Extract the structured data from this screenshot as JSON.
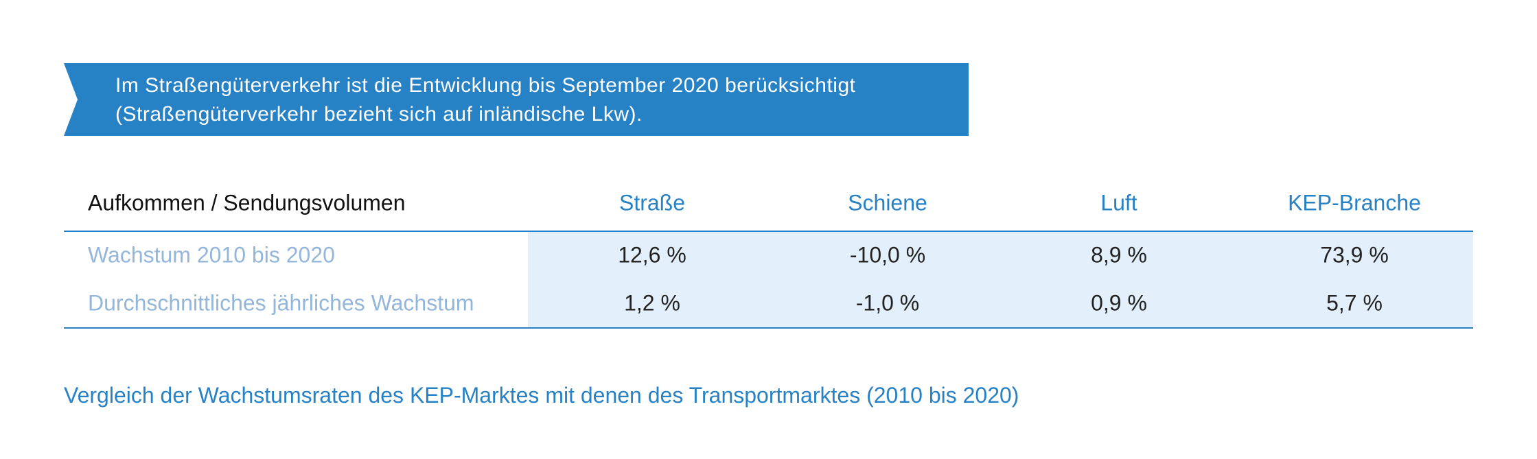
{
  "banner": {
    "lines": [
      "Im Straßengüterverkehr ist die Entwicklung bis September 2020 berücksichtigt",
      "(Straßengüterverkehr bezieht sich auf inländische Lkw)."
    ]
  },
  "table": {
    "header": [
      "Aufkommen / Sendungsvolumen",
      "Straße",
      "Schiene",
      "Luft",
      "KEP-Branche"
    ],
    "rows": [
      [
        "Wachstum 2010 bis 2020",
        "12,6 %",
        "-10,0 %",
        "8,9 %",
        "73,9 %"
      ],
      [
        "Durchschnittliches jährliches Wachstum",
        "1,2 %",
        "-1,0 %",
        "0,9 %",
        "5,7 %"
      ]
    ]
  },
  "caption": "Vergleich der Wachstumsraten des KEP-Marktes mit denen des Transportmarktes (2010 bis 2020)"
}
